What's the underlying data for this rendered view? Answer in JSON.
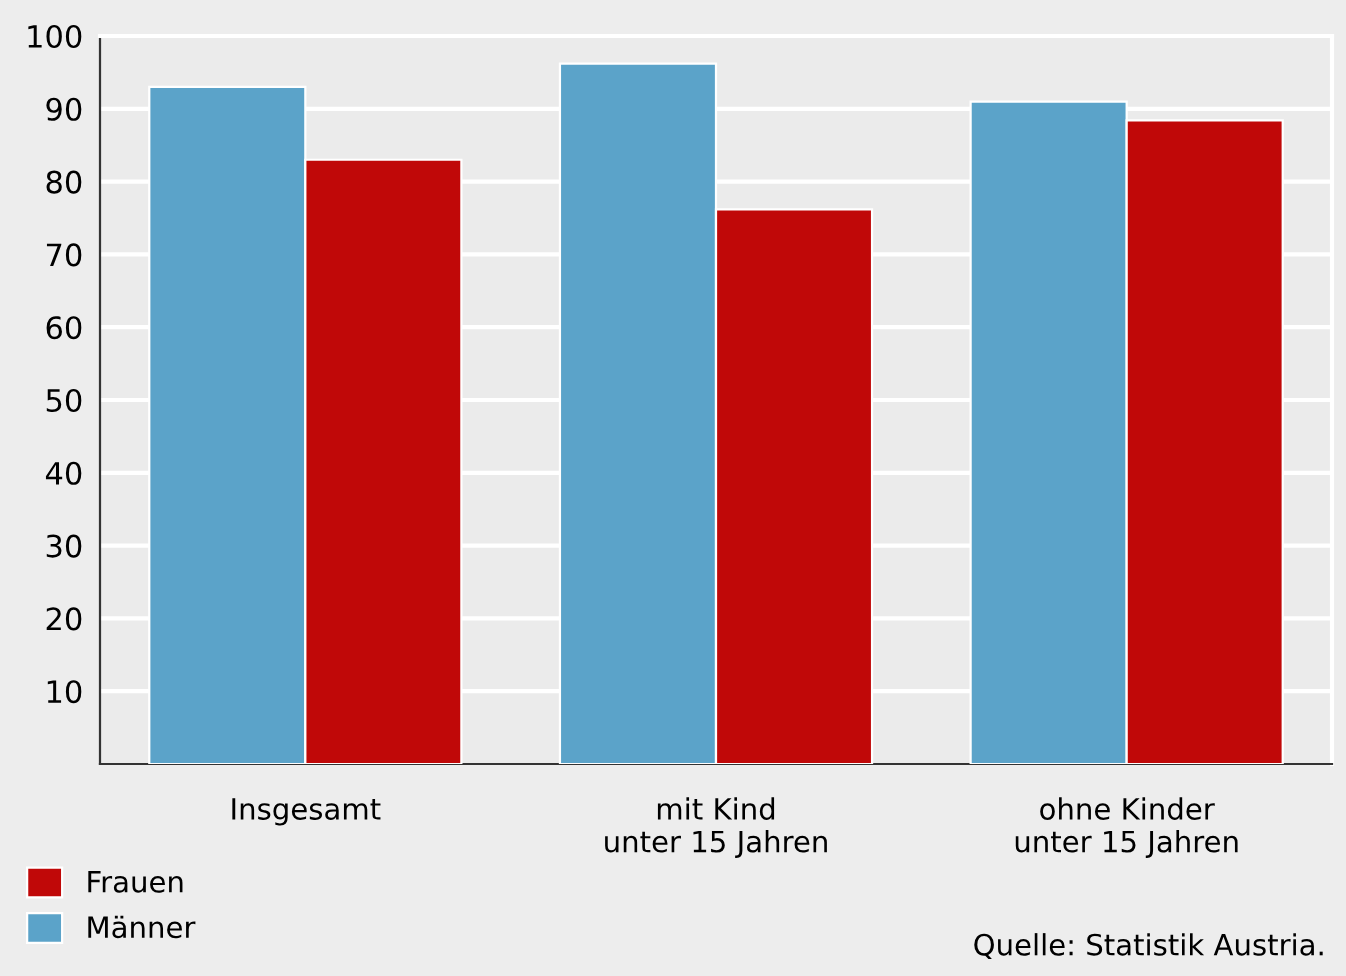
{
  "chart_data": {
    "type": "bar",
    "categories": [
      "Insgesamt",
      "mit Kind\nunter 15 Jahren",
      "ohne Kinder\nunter 15 Jahren"
    ],
    "series": [
      {
        "name": "Männer",
        "color": "#5ba3c9",
        "values": [
          93,
          96.2,
          91
        ]
      },
      {
        "name": "Frauen",
        "color": "#c00808",
        "values": [
          83,
          76.2,
          88.4
        ]
      }
    ],
    "ylim": [
      0,
      100
    ],
    "yticks": [
      10,
      20,
      30,
      40,
      50,
      60,
      70,
      80,
      90,
      100
    ],
    "grid": "y",
    "legend": "bottom left",
    "annotations": [
      "Quelle: Statistik Austria."
    ]
  }
}
